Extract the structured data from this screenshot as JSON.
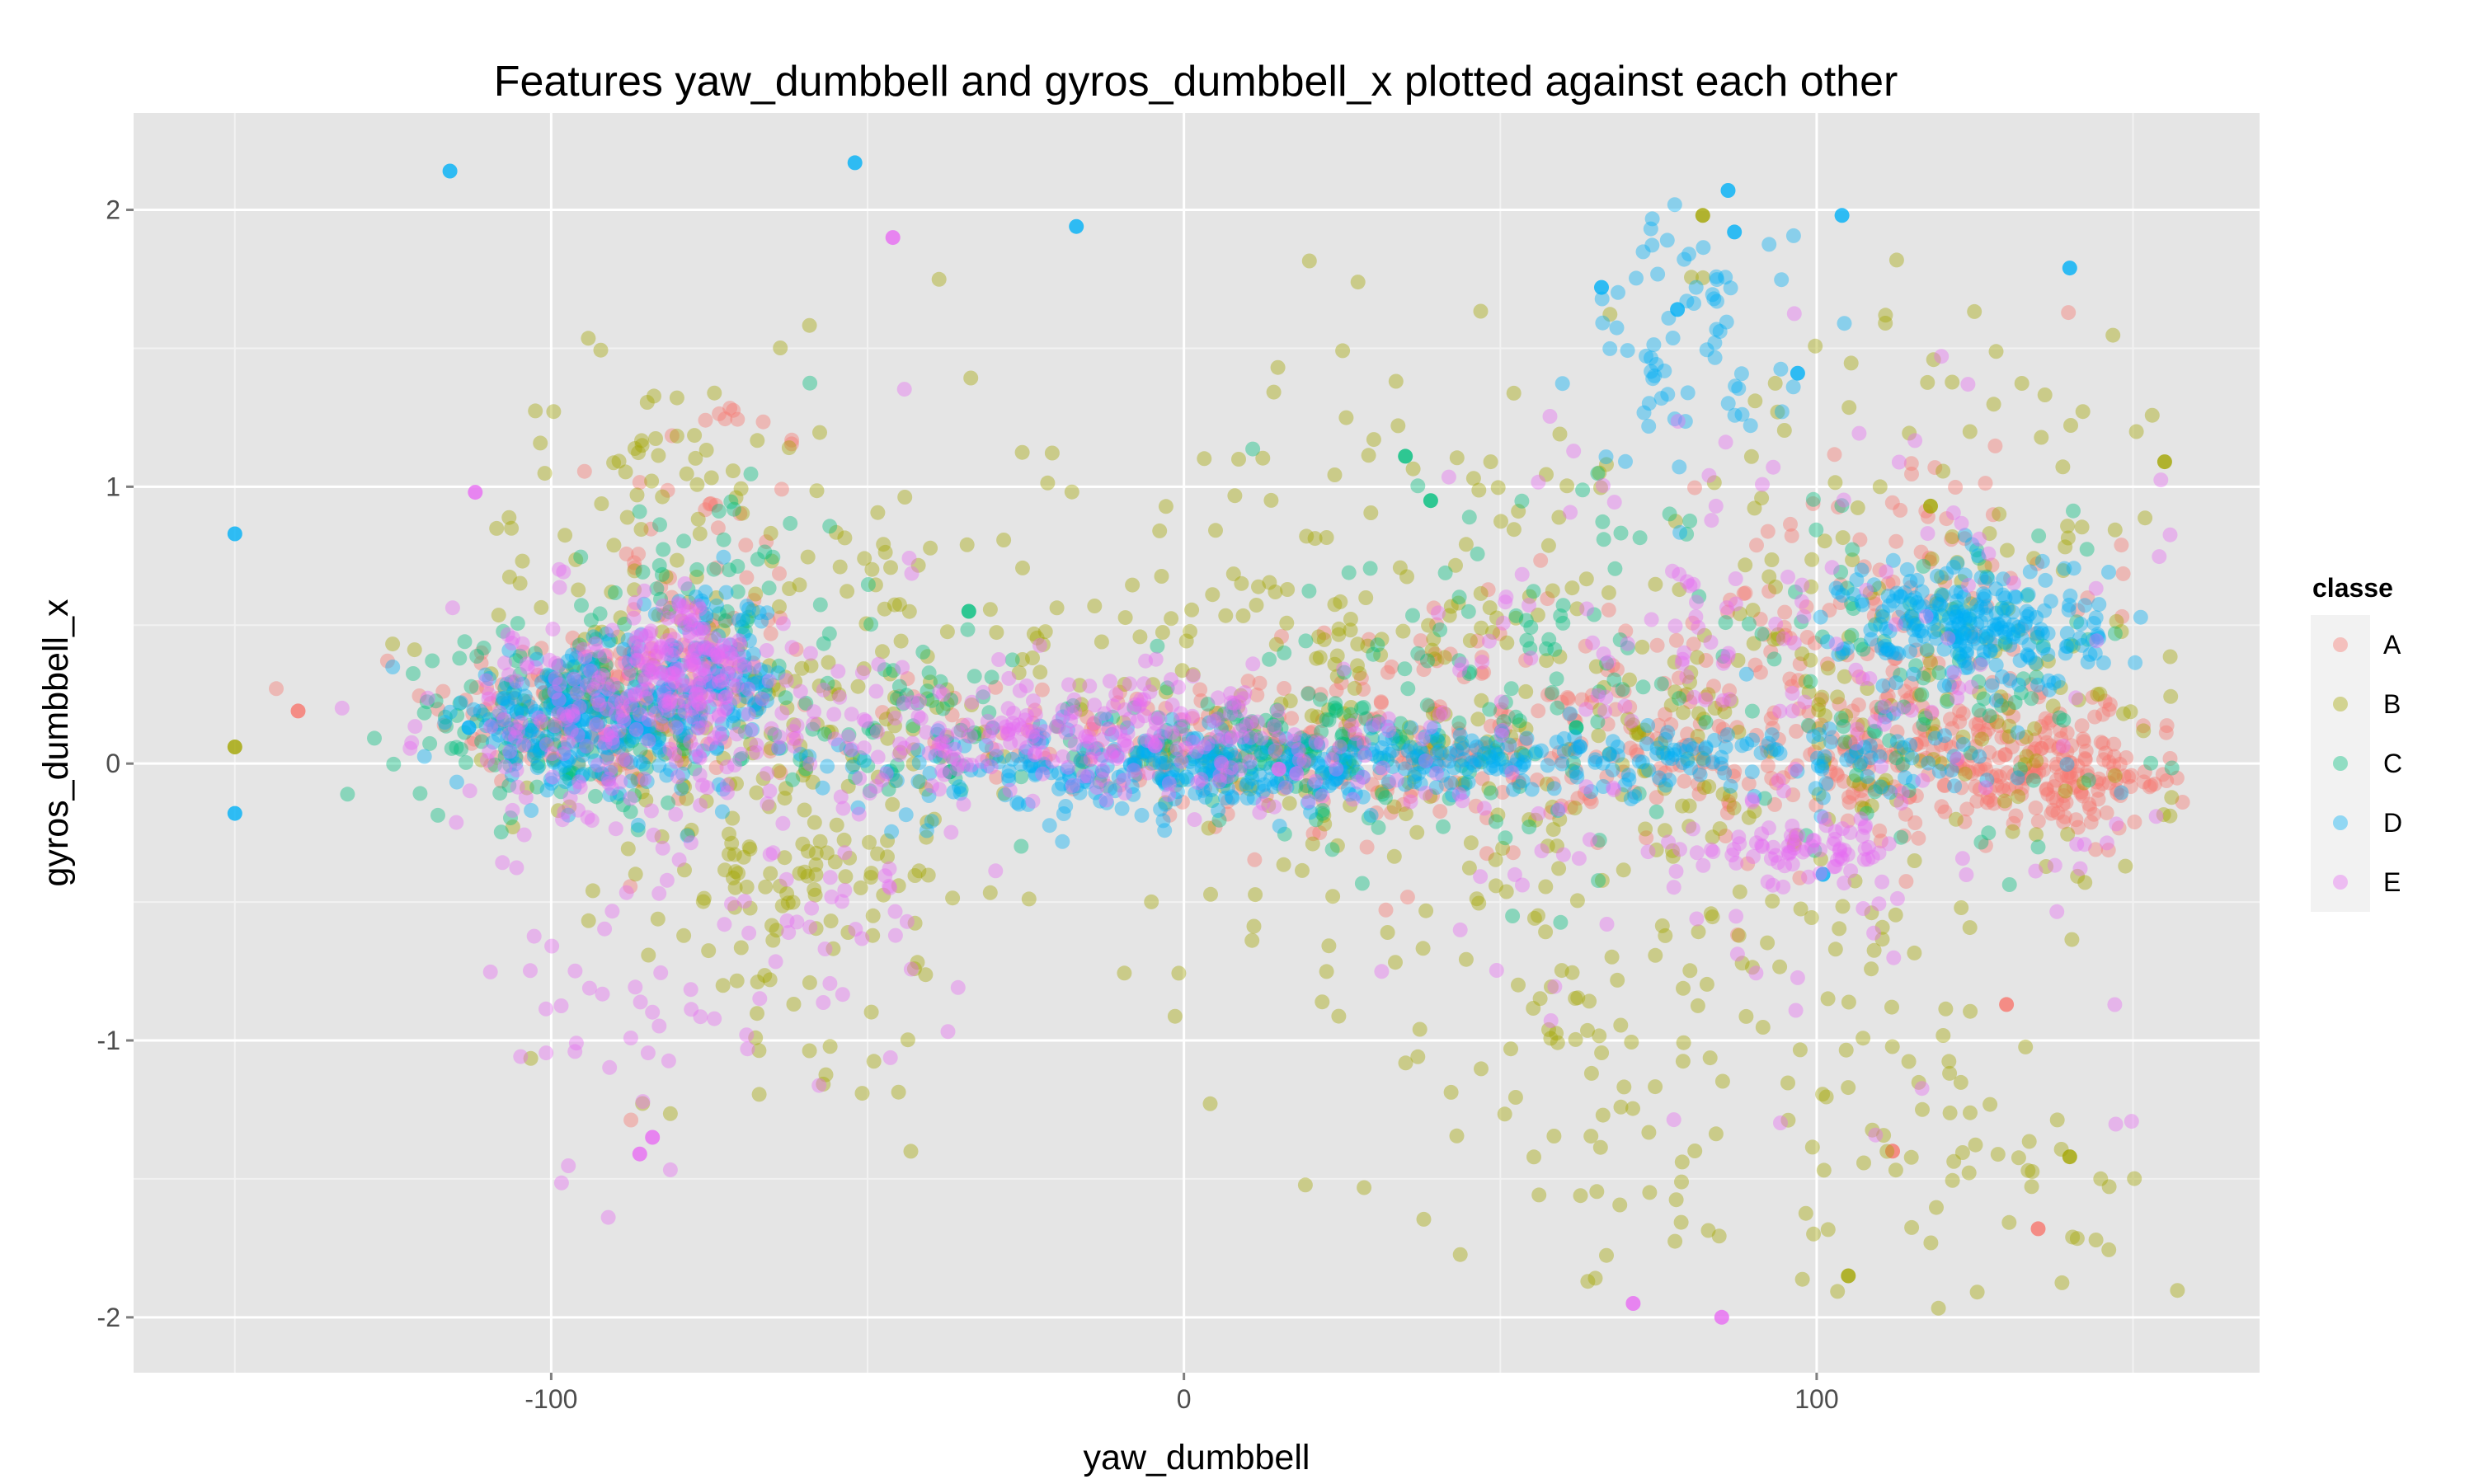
{
  "chart_data": {
    "type": "scatter",
    "title": "Features  yaw_dumbbell  and  gyros_dumbbell_x  plotted against each other",
    "xlabel": "yaw_dumbbell",
    "ylabel": "gyros_dumbbell_x",
    "xlim": [
      -166,
      170
    ],
    "ylim": [
      -2.2,
      2.35
    ],
    "x_ticks": [
      {
        "value": -100,
        "label": "-100"
      },
      {
        "value": 0,
        "label": "0"
      },
      {
        "value": 100,
        "label": "100"
      }
    ],
    "y_ticks": [
      {
        "value": -2,
        "label": "-2"
      },
      {
        "value": -1,
        "label": "-1"
      },
      {
        "value": 0,
        "label": "0"
      },
      {
        "value": 1,
        "label": "1"
      },
      {
        "value": 2,
        "label": "2"
      }
    ],
    "grid": true,
    "legend": {
      "title": "classe",
      "position": "right"
    },
    "point_alpha": 0.4,
    "series": [
      {
        "name": "A",
        "color": "#F8766D",
        "clusters": [
          [
            -95,
            0.2,
            12,
            0.15,
            150
          ],
          [
            -75,
            0.6,
            8,
            0.45,
            70
          ],
          [
            20,
            0.05,
            20,
            0.12,
            120
          ],
          [
            60,
            0.1,
            30,
            0.25,
            160
          ],
          [
            110,
            0.05,
            25,
            0.12,
            200
          ],
          [
            135,
            -0.05,
            12,
            0.1,
            160
          ],
          [
            115,
            0.6,
            15,
            0.3,
            100
          ],
          [
            -20,
            0.1,
            20,
            0.1,
            60
          ]
        ],
        "points": [
          [
            -140,
            0.19
          ],
          [
            135,
            -1.68
          ],
          [
            112,
            -1.4
          ],
          [
            130,
            -0.87
          ]
        ]
      },
      {
        "name": "B",
        "color": "#A3A500",
        "clusters": [
          [
            -85,
            0.5,
            15,
            0.5,
            120
          ],
          [
            -55,
            0.2,
            15,
            0.6,
            170
          ],
          [
            -65,
            -0.4,
            10,
            0.25,
            60
          ],
          [
            10,
            0.3,
            25,
            0.45,
            130
          ],
          [
            60,
            0.2,
            35,
            0.65,
            240
          ],
          [
            130,
            0.5,
            20,
            0.65,
            120
          ],
          [
            90,
            -0.3,
            20,
            0.7,
            100
          ],
          [
            75,
            -1.2,
            20,
            0.4,
            60
          ],
          [
            125,
            -1.4,
            18,
            0.3,
            50
          ]
        ],
        "points": [
          [
            -150,
            0.06
          ],
          [
            155,
            1.09
          ],
          [
            140,
            -1.42
          ],
          [
            82,
            1.98
          ],
          [
            118,
            0.93
          ],
          [
            105,
            -1.85
          ]
        ]
      },
      {
        "name": "C",
        "color": "#00BF7D",
        "clusters": [
          [
            -100,
            0.15,
            12,
            0.15,
            150
          ],
          [
            -75,
            0.5,
            12,
            0.3,
            80
          ],
          [
            15,
            0.05,
            15,
            0.1,
            140
          ],
          [
            50,
            0.3,
            25,
            0.35,
            120
          ],
          [
            120,
            0.3,
            20,
            0.3,
            100
          ],
          [
            -40,
            0.1,
            20,
            0.15,
            60
          ]
        ],
        "points": [
          [
            -34,
            0.55
          ],
          [
            35,
            1.11
          ],
          [
            39,
            0.95
          ],
          [
            62,
            0.13
          ],
          [
            -37,
            -0.03
          ]
        ]
      },
      {
        "name": "D",
        "color": "#00B0F6",
        "clusters": [
          [
            -95,
            0.15,
            10,
            0.12,
            220
          ],
          [
            -75,
            0.3,
            6,
            0.15,
            120
          ],
          [
            10,
            -0.02,
            25,
            0.06,
            200
          ],
          [
            70,
            0.02,
            30,
            0.06,
            180
          ],
          [
            125,
            0.5,
            10,
            0.12,
            240
          ],
          [
            80,
            1.5,
            8,
            0.25,
            70
          ],
          [
            -20,
            -0.05,
            20,
            0.1,
            80
          ]
        ],
        "points": [
          [
            -150,
            0.83
          ],
          [
            -116,
            2.14
          ],
          [
            -52,
            2.17
          ],
          [
            -17,
            1.94
          ],
          [
            86,
            2.07
          ],
          [
            104,
            1.98
          ],
          [
            140,
            1.79
          ],
          [
            66,
            1.72
          ],
          [
            78,
            1.64
          ],
          [
            87,
            1.92
          ],
          [
            97,
            1.41
          ],
          [
            101,
            -0.4
          ],
          [
            -150,
            -0.18
          ],
          [
            -113,
            0.13
          ]
        ]
      },
      {
        "name": "E",
        "color": "#E76BF3",
        "clusters": [
          [
            -90,
            0.15,
            14,
            0.2,
            200
          ],
          [
            -78,
            0.35,
            5,
            0.12,
            120
          ],
          [
            -20,
            0.12,
            20,
            0.1,
            180
          ],
          [
            100,
            -0.3,
            8,
            0.05,
            60
          ],
          [
            90,
            0.2,
            30,
            0.55,
            200
          ],
          [
            -55,
            -0.3,
            15,
            0.5,
            80
          ],
          [
            -90,
            -0.8,
            10,
            0.3,
            40
          ],
          [
            10,
            0.05,
            20,
            0.12,
            80
          ]
        ],
        "points": [
          [
            -84,
            -1.35
          ],
          [
            -46,
            1.9
          ],
          [
            -112,
            0.98
          ],
          [
            85,
            -2.0
          ],
          [
            71,
            -1.95
          ],
          [
            15,
            -0.02
          ],
          [
            -86,
            -1.41
          ]
        ]
      }
    ]
  }
}
